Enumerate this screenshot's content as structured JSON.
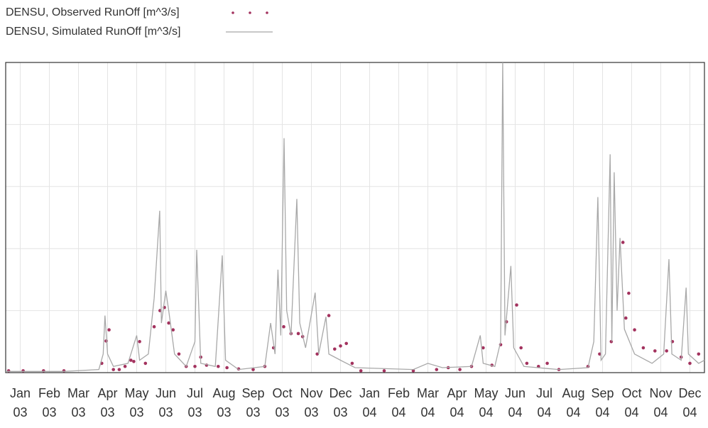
{
  "chart_data": {
    "type": "line",
    "xlim": [
      0,
      24
    ],
    "xticks": [
      {
        "value": 0.5,
        "label": "Jan 03"
      },
      {
        "value": 1.5,
        "label": "Feb 03"
      },
      {
        "value": 2.5,
        "label": "Mar 03"
      },
      {
        "value": 3.5,
        "label": "Apr 03"
      },
      {
        "value": 4.5,
        "label": "May 03"
      },
      {
        "value": 5.5,
        "label": "Jun 03"
      },
      {
        "value": 6.5,
        "label": "Jul 03"
      },
      {
        "value": 7.5,
        "label": "Aug 03"
      },
      {
        "value": 8.5,
        "label": "Sep 03"
      },
      {
        "value": 9.5,
        "label": "Oct 03"
      },
      {
        "value": 10.5,
        "label": "Nov 03"
      },
      {
        "value": 11.5,
        "label": "Dec 03"
      },
      {
        "value": 12.5,
        "label": "Jan 04"
      },
      {
        "value": 13.5,
        "label": "Feb 04"
      },
      {
        "value": 14.5,
        "label": "Mar 04"
      },
      {
        "value": 15.5,
        "label": "Apr 04"
      },
      {
        "value": 16.5,
        "label": "May 04"
      },
      {
        "value": 17.5,
        "label": "Jun 04"
      },
      {
        "value": 18.5,
        "label": "Jul 04"
      },
      {
        "value": 19.5,
        "label": "Aug 04"
      },
      {
        "value": 20.5,
        "label": "Sep 04"
      },
      {
        "value": 21.5,
        "label": "Oct 04"
      },
      {
        "value": 22.5,
        "label": "Nov 04"
      },
      {
        "value": 23.5,
        "label": "Dec 04"
      }
    ],
    "ylim": [
      0,
      5
    ],
    "yticks": [
      0,
      1,
      2,
      3,
      4,
      5
    ],
    "grid": true,
    "legend": "top-left",
    "series": [
      {
        "name": "DENSU, Observed RunOff [m^3/s]",
        "color": "#a3325e",
        "style": "dots",
        "x": [
          0.1,
          0.6,
          1.3,
          2.0,
          3.3,
          3.45,
          3.55,
          3.7,
          3.9,
          4.1,
          4.3,
          4.4,
          4.6,
          4.8,
          5.1,
          5.3,
          5.45,
          5.6,
          5.75,
          5.95,
          6.2,
          6.5,
          6.7,
          6.9,
          7.3,
          7.6,
          8.0,
          8.5,
          8.9,
          9.2,
          9.55,
          9.8,
          10.05,
          10.2,
          10.7,
          11.1,
          11.3,
          11.5,
          11.7,
          11.9,
          12.2,
          13,
          14,
          14.8,
          15.2,
          15.6,
          16,
          16.4,
          16.7,
          17.0,
          17.2,
          17.55,
          17.7,
          17.9,
          18.3,
          18.6,
          19,
          20,
          20.4,
          20.8,
          21.2,
          21.3,
          21.4,
          21.6,
          21.9,
          22.3,
          22.7,
          22.9,
          23.2,
          23.5,
          23.8
        ],
        "values": [
          0.03,
          0.03,
          0.03,
          0.03,
          0.15,
          0.51,
          0.69,
          0.05,
          0.05,
          0.1,
          0.2,
          0.18,
          0.5,
          0.15,
          0.74,
          1.0,
          1.05,
          0.8,
          0.69,
          0.3,
          0.1,
          0.1,
          0.25,
          0.12,
          0.1,
          0.08,
          0.06,
          0.05,
          0.1,
          0.4,
          0.74,
          0.63,
          0.63,
          0.58,
          0.3,
          0.92,
          0.38,
          0.43,
          0.47,
          0.15,
          0.03,
          0.03,
          0.03,
          0.05,
          0.08,
          0.05,
          0.1,
          0.4,
          0.12,
          0.45,
          0.82,
          1.09,
          0.4,
          0.15,
          0.1,
          0.15,
          0.05,
          0.1,
          0.3,
          0.5,
          2.1,
          0.88,
          1.28,
          0.69,
          0.4,
          0.35,
          0.35,
          0.5,
          0.25,
          0.15,
          0.3
        ]
      },
      {
        "name": "DENSU, Simulated RunOff [m^3/s]",
        "color": "#a8a8a8",
        "style": "line",
        "x": [
          0,
          1,
          2,
          3.2,
          3.35,
          3.41,
          3.5,
          3.7,
          4.2,
          4.5,
          4.6,
          4.9,
          5.1,
          5.29,
          5.35,
          5.5,
          5.6,
          5.8,
          6.2,
          6.5,
          6.56,
          6.65,
          6.7,
          7.2,
          7.44,
          7.55,
          8,
          8.9,
          9.1,
          9.25,
          9.35,
          9.45,
          9.56,
          9.65,
          9.8,
          10.0,
          10.1,
          10.3,
          10.63,
          10.75,
          11.0,
          11.1,
          11.5,
          12,
          14,
          14.5,
          15,
          16,
          16.3,
          16.4,
          16.8,
          17.0,
          17.07,
          17.15,
          17.35,
          17.45,
          17.8,
          19,
          20,
          20.2,
          20.34,
          20.45,
          20.6,
          20.76,
          20.82,
          20.9,
          21.0,
          21.1,
          21.25,
          21.6,
          22.2,
          22.6,
          22.78,
          22.88,
          23.2,
          23.37,
          23.45,
          23.8,
          24
        ],
        "values": [
          0.02,
          0.02,
          0.02,
          0.05,
          0.3,
          0.92,
          0.3,
          0.1,
          0.15,
          0.6,
          0.2,
          0.3,
          1.2,
          2.61,
          0.8,
          1.32,
          1.0,
          0.3,
          0.1,
          0.5,
          1.98,
          0.8,
          0.15,
          0.1,
          1.89,
          0.2,
          0.05,
          0.1,
          0.8,
          0.3,
          1.66,
          0.6,
          3.78,
          1.0,
          0.6,
          2.8,
          0.8,
          0.4,
          1.29,
          0.3,
          0.9,
          0.3,
          0.2,
          0.08,
          0.05,
          0.15,
          0.08,
          0.1,
          0.6,
          0.15,
          0.1,
          0.5,
          5.0,
          0.6,
          1.72,
          0.4,
          0.1,
          0.05,
          0.08,
          0.5,
          2.83,
          0.2,
          0.3,
          3.52,
          0.5,
          3.23,
          1.0,
          2.17,
          0.7,
          0.3,
          0.15,
          0.3,
          1.83,
          0.3,
          0.2,
          1.37,
          0.3,
          0.15,
          0.2
        ]
      }
    ]
  }
}
